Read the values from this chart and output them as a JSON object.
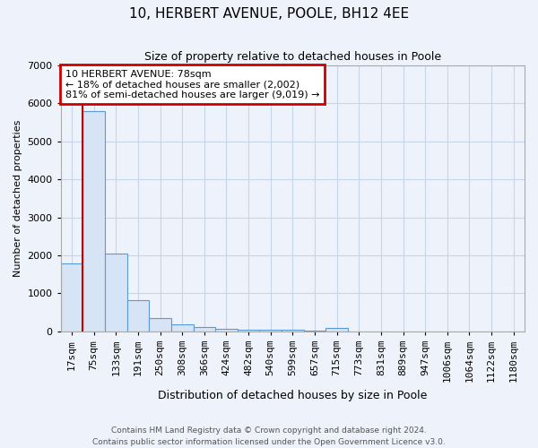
{
  "title": "10, HERBERT AVENUE, POOLE, BH12 4EE",
  "subtitle": "Size of property relative to detached houses in Poole",
  "xlabel": "Distribution of detached houses by size in Poole",
  "ylabel": "Number of detached properties",
  "categories": [
    "17sqm",
    "75sqm",
    "133sqm",
    "191sqm",
    "250sqm",
    "308sqm",
    "366sqm",
    "424sqm",
    "482sqm",
    "540sqm",
    "599sqm",
    "657sqm",
    "715sqm",
    "773sqm",
    "831sqm",
    "889sqm",
    "947sqm",
    "1006sqm",
    "1064sqm",
    "1122sqm",
    "1180sqm"
  ],
  "values": [
    1780,
    5800,
    2050,
    830,
    340,
    190,
    110,
    65,
    50,
    40,
    35,
    30,
    80,
    0,
    0,
    0,
    0,
    0,
    0,
    0,
    0
  ],
  "bar_color": "#d6e4f5",
  "bar_edge_color": "#5b9bd5",
  "grid_color": "#c8d4e8",
  "background_color": "#eef2fa",
  "annotation_text": "10 HERBERT AVENUE: 78sqm\n← 18% of detached houses are smaller (2,002)\n81% of semi-detached houses are larger (9,019) →",
  "annotation_box_color": "#ffffff",
  "annotation_box_edge": "#cc0000",
  "red_line_x": 0.5,
  "ylim": [
    0,
    7000
  ],
  "yticks": [
    0,
    1000,
    2000,
    3000,
    4000,
    5000,
    6000,
    7000
  ],
  "footnote1": "Contains HM Land Registry data © Crown copyright and database right 2024.",
  "footnote2": "Contains public sector information licensed under the Open Government Licence v3.0."
}
